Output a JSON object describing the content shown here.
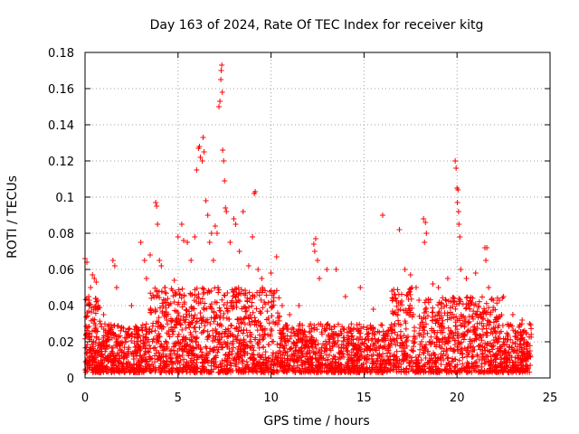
{
  "chart_data": {
    "type": "scatter",
    "title": "Day 163 of 2024, Rate Of TEC Index for receiver kitg",
    "xlabel": "GPS time / hours",
    "ylabel": "ROTI / TECUs",
    "xlim": [
      0,
      25
    ],
    "ylim": [
      0,
      0.18
    ],
    "x_ticks": [
      0,
      5,
      10,
      15,
      20,
      25
    ],
    "x_tick_labels": [
      "0",
      "5",
      "10",
      "15",
      "20",
      "25"
    ],
    "y_ticks": [
      0,
      0.02,
      0.04,
      0.06,
      0.08,
      0.1,
      0.12,
      0.14,
      0.16,
      0.18
    ],
    "y_tick_labels": [
      "0",
      "0.02",
      "0.04",
      "0.06",
      "0.08",
      "0.1",
      "0.12",
      "0.14",
      "0.16",
      "0.18"
    ],
    "grid": true,
    "marker": "+",
    "series": [
      {
        "name": "ROTI",
        "color": "#ff0000",
        "x_range": [
          0,
          24
        ],
        "points": [
          [
            0.0,
            0.066
          ],
          [
            0.1,
            0.064
          ],
          [
            0.2,
            0.045
          ],
          [
            0.3,
            0.05
          ],
          [
            0.4,
            0.057
          ],
          [
            0.5,
            0.055
          ],
          [
            0.6,
            0.053
          ],
          [
            0.7,
            0.04
          ],
          [
            1.0,
            0.035
          ],
          [
            1.5,
            0.065
          ],
          [
            1.6,
            0.062
          ],
          [
            1.7,
            0.05
          ],
          [
            2.5,
            0.04
          ],
          [
            3.0,
            0.075
          ],
          [
            3.2,
            0.065
          ],
          [
            3.3,
            0.055
          ],
          [
            3.5,
            0.068
          ],
          [
            3.8,
            0.097
          ],
          [
            3.85,
            0.095
          ],
          [
            3.9,
            0.085
          ],
          [
            4.0,
            0.065
          ],
          [
            4.1,
            0.062
          ],
          [
            4.3,
            0.05
          ],
          [
            4.5,
            0.04
          ],
          [
            4.8,
            0.054
          ],
          [
            5.0,
            0.078
          ],
          [
            5.2,
            0.085
          ],
          [
            5.3,
            0.076
          ],
          [
            5.5,
            0.075
          ],
          [
            5.7,
            0.065
          ],
          [
            5.9,
            0.078
          ],
          [
            6.0,
            0.115
          ],
          [
            6.1,
            0.127
          ],
          [
            6.15,
            0.128
          ],
          [
            6.2,
            0.122
          ],
          [
            6.3,
            0.12
          ],
          [
            6.35,
            0.133
          ],
          [
            6.4,
            0.125
          ],
          [
            6.5,
            0.098
          ],
          [
            6.6,
            0.09
          ],
          [
            6.7,
            0.075
          ],
          [
            6.8,
            0.08
          ],
          [
            6.9,
            0.065
          ],
          [
            7.0,
            0.084
          ],
          [
            7.1,
            0.08
          ],
          [
            7.2,
            0.15
          ],
          [
            7.25,
            0.153
          ],
          [
            7.3,
            0.165
          ],
          [
            7.32,
            0.17
          ],
          [
            7.35,
            0.173
          ],
          [
            7.38,
            0.158
          ],
          [
            7.4,
            0.126
          ],
          [
            7.45,
            0.12
          ],
          [
            7.5,
            0.109
          ],
          [
            7.55,
            0.094
          ],
          [
            7.6,
            0.092
          ],
          [
            7.8,
            0.075
          ],
          [
            8.0,
            0.088
          ],
          [
            8.1,
            0.085
          ],
          [
            8.3,
            0.07
          ],
          [
            8.5,
            0.092
          ],
          [
            8.8,
            0.062
          ],
          [
            9.0,
            0.078
          ],
          [
            9.1,
            0.102
          ],
          [
            9.15,
            0.103
          ],
          [
            9.3,
            0.06
          ],
          [
            9.5,
            0.055
          ],
          [
            10.0,
            0.058
          ],
          [
            10.3,
            0.067
          ],
          [
            10.6,
            0.04
          ],
          [
            11.0,
            0.035
          ],
          [
            11.5,
            0.04
          ],
          [
            12.3,
            0.074
          ],
          [
            12.35,
            0.07
          ],
          [
            12.4,
            0.077
          ],
          [
            12.5,
            0.065
          ],
          [
            12.6,
            0.055
          ],
          [
            13.0,
            0.06
          ],
          [
            13.5,
            0.06
          ],
          [
            14.0,
            0.045
          ],
          [
            14.8,
            0.05
          ],
          [
            15.5,
            0.038
          ],
          [
            16.0,
            0.09
          ],
          [
            16.5,
            0.048
          ],
          [
            16.9,
            0.082
          ],
          [
            17.2,
            0.06
          ],
          [
            17.5,
            0.057
          ],
          [
            17.8,
            0.05
          ],
          [
            18.2,
            0.088
          ],
          [
            18.3,
            0.086
          ],
          [
            18.25,
            0.075
          ],
          [
            18.35,
            0.08
          ],
          [
            18.7,
            0.052
          ],
          [
            19.0,
            0.05
          ],
          [
            19.5,
            0.055
          ],
          [
            19.9,
            0.12
          ],
          [
            19.95,
            0.116
          ],
          [
            20.0,
            0.105
          ],
          [
            20.05,
            0.104
          ],
          [
            20.02,
            0.097
          ],
          [
            20.08,
            0.092
          ],
          [
            20.1,
            0.085
          ],
          [
            20.15,
            0.078
          ],
          [
            20.2,
            0.06
          ],
          [
            20.5,
            0.055
          ],
          [
            21.0,
            0.058
          ],
          [
            21.5,
            0.072
          ],
          [
            21.6,
            0.072
          ],
          [
            21.55,
            0.065
          ],
          [
            21.7,
            0.05
          ],
          [
            22.5,
            0.045
          ],
          [
            23.0,
            0.035
          ],
          [
            23.5,
            0.032
          ],
          [
            23.9,
            0.03
          ]
        ]
      }
    ]
  }
}
